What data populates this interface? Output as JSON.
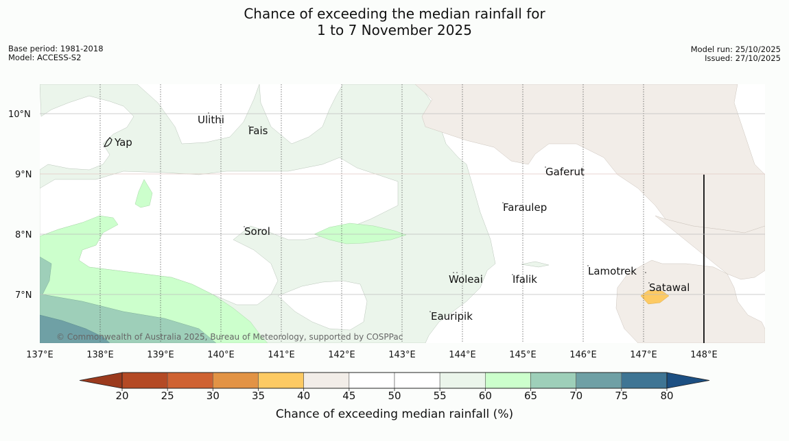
{
  "title_line1": "Chance of exceeding the median rainfall for",
  "title_line2": "1 to 7 November 2025",
  "base_period": "Base period: 1981-2018",
  "model": "Model: ACCESS-S2",
  "model_run": "Model run: 25/10/2025",
  "issued": "Issued: 27/10/2025",
  "latitudes": [
    "10°N",
    "9°N",
    "8°N",
    "7°N"
  ],
  "longitudes": [
    "137°E",
    "138°E",
    "139°E",
    "140°E",
    "141°E",
    "142°E",
    "143°E",
    "144°E",
    "145°E",
    "146°E",
    "147°E",
    "148°E"
  ],
  "places": [
    {
      "name": "Ulithi"
    },
    {
      "name": "Fais"
    },
    {
      "name": "Yap"
    },
    {
      "name": "Gaferut"
    },
    {
      "name": "Faraulep"
    },
    {
      "name": "Sorol"
    },
    {
      "name": "Lamotrek"
    },
    {
      "name": "Woleai"
    },
    {
      "name": "Ifalik"
    },
    {
      "name": "Satawal"
    },
    {
      "name": "Eauripik"
    }
  ],
  "copyright": "© Commonwealth of Australia 2025, Bureau of Meteorology, supported by COSPPac",
  "colorbar": {
    "title": "Chance of exceeding median rainfall (%)",
    "ticks": [
      "20",
      "25",
      "30",
      "35",
      "40",
      "45",
      "50",
      "55",
      "60",
      "65",
      "70",
      "75",
      "80"
    ],
    "colors": [
      "#b44a25",
      "#cf6232",
      "#e29345",
      "#fdca63",
      "#f2ede8",
      "#ffffff",
      "#ffffff",
      "#ebf5eb",
      "#ccffcc",
      "#9ecfb9",
      "#6fa0a5",
      "#3f7594"
    ],
    "under_color": "#9b3a1d",
    "over_color": "#1c4f82"
  }
}
